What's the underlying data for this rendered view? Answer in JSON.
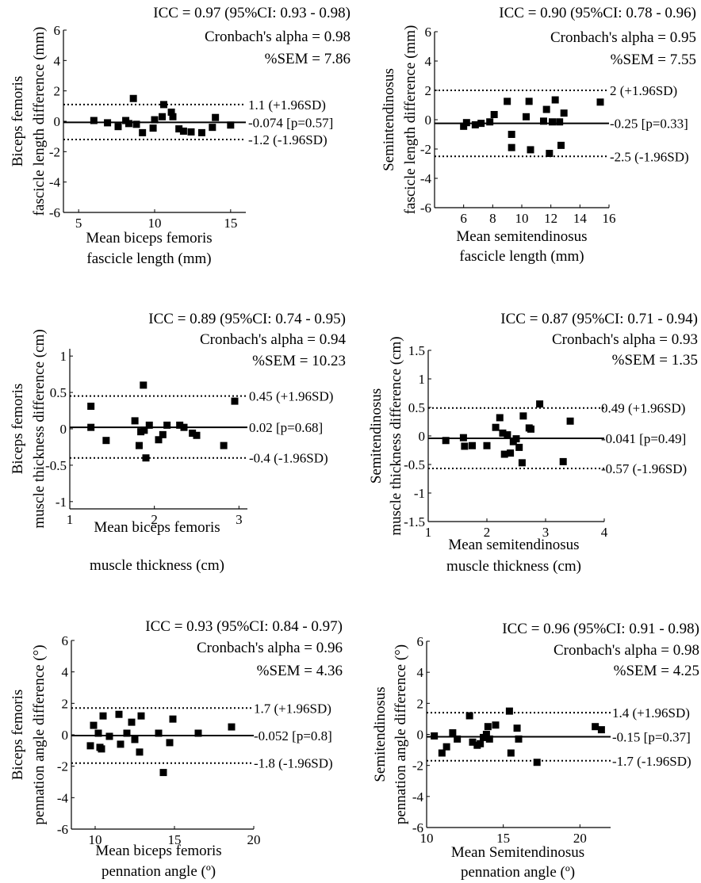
{
  "chart_data": [
    {
      "type": "scatter",
      "ylabel": [
        "Biceps femoris",
        "fascicle length difference (mm)"
      ],
      "xlabel": [
        "Mean biceps femoris",
        "fascicle length (mm)"
      ],
      "stats": [
        "ICC = 0.97 (95%CI: 0.93 - 0.98)",
        "Cronbach's alpha = 0.98",
        "%SEM = 7.86"
      ],
      "xlim": [
        4,
        16
      ],
      "ylim": [
        -6,
        6
      ],
      "xticks": [
        5,
        10,
        15
      ],
      "yticks": [
        -6,
        -4,
        -2,
        0,
        2,
        4,
        6
      ],
      "mean_line": -0.074,
      "upper_loa": 1.1,
      "lower_loa": -1.2,
      "mean_label": "-0.074 [p=0.57]",
      "upper_label": "1.1 (+1.96SD)",
      "lower_label": "-1.2 (-1.96SD)",
      "points": [
        [
          6.0,
          0.05
        ],
        [
          6.9,
          -0.1
        ],
        [
          7.6,
          -0.35
        ],
        [
          8.1,
          0.05
        ],
        [
          8.3,
          -0.15
        ],
        [
          8.6,
          1.5
        ],
        [
          8.8,
          -0.2
        ],
        [
          9.2,
          -0.75
        ],
        [
          9.9,
          -0.45
        ],
        [
          10.0,
          0.1
        ],
        [
          10.5,
          0.3
        ],
        [
          10.6,
          1.1
        ],
        [
          11.1,
          0.6
        ],
        [
          11.2,
          0.3
        ],
        [
          11.6,
          -0.5
        ],
        [
          11.9,
          -0.65
        ],
        [
          12.4,
          -0.7
        ],
        [
          13.1,
          -0.75
        ],
        [
          13.8,
          -0.4
        ],
        [
          14.0,
          0.25
        ],
        [
          15.0,
          -0.25
        ]
      ]
    },
    {
      "type": "scatter",
      "ylabel": [
        "Semintendinosus",
        "fascicle length difference (mm)"
      ],
      "xlabel": [
        "Mean semitendinosus",
        "fascicle length (mm)"
      ],
      "stats": [
        "ICC = 0.90 (95%CI: 0.78 - 0.96)",
        "Cronbach's alpha = 0.95",
        "%SEM = 7.55"
      ],
      "xlim": [
        4,
        16
      ],
      "ylim": [
        -6,
        6
      ],
      "xticks": [
        6,
        8,
        10,
        12,
        14,
        16
      ],
      "yticks": [
        -6,
        -4,
        -2,
        0,
        2,
        4,
        6
      ],
      "mean_line": -0.25,
      "upper_loa": 2,
      "lower_loa": -2.5,
      "mean_label": "-0.25 [p=0.33]",
      "upper_label": "2 (+1.96SD)",
      "lower_label": "-2.5 (-1.96SD)",
      "points": [
        [
          6.0,
          -0.45
        ],
        [
          6.2,
          -0.2
        ],
        [
          6.8,
          -0.35
        ],
        [
          7.2,
          -0.25
        ],
        [
          7.8,
          -0.15
        ],
        [
          8.1,
          0.35
        ],
        [
          9.0,
          1.25
        ],
        [
          9.3,
          -1.0
        ],
        [
          9.3,
          -1.9
        ],
        [
          10.3,
          0.2
        ],
        [
          10.5,
          1.25
        ],
        [
          10.6,
          -2.05
        ],
        [
          11.5,
          -0.1
        ],
        [
          11.7,
          0.7
        ],
        [
          11.9,
          -2.3
        ],
        [
          12.1,
          -0.15
        ],
        [
          12.3,
          1.35
        ],
        [
          12.6,
          -0.15
        ],
        [
          12.7,
          -1.75
        ],
        [
          12.9,
          0.45
        ],
        [
          15.4,
          1.2
        ]
      ]
    },
    {
      "type": "scatter",
      "ylabel": [
        "Biceps femoris",
        "muscle thickness difference (cm)"
      ],
      "xlabel": [
        "Mean biceps femoris",
        "muscle thickness (cm)"
      ],
      "stats": [
        "ICC = 0.89 (95%CI: 0.74 - 0.95)",
        "Cronbach's alpha = 0.94",
        "%SEM = 10.23"
      ],
      "xlim": [
        1,
        3.1
      ],
      "ylim": [
        -1.1,
        1.1
      ],
      "xticks": [
        1,
        2,
        3
      ],
      "yticks": [
        -1,
        -0.5,
        0,
        0.5,
        1
      ],
      "mean_line": 0.02,
      "upper_loa": 0.45,
      "lower_loa": -0.4,
      "mean_label": "0.02 [p=0.68]",
      "upper_label": "0.45 (+1.96SD)",
      "lower_label": "-0.4 (-1.96SD)",
      "points": [
        [
          1.25,
          0.31
        ],
        [
          1.25,
          0.02
        ],
        [
          1.43,
          -0.16
        ],
        [
          1.77,
          0.11
        ],
        [
          1.82,
          -0.23
        ],
        [
          1.84,
          -0.04
        ],
        [
          1.87,
          0.6
        ],
        [
          1.88,
          -0.02
        ],
        [
          1.9,
          -0.4
        ],
        [
          1.94,
          0.05
        ],
        [
          2.05,
          -0.15
        ],
        [
          2.1,
          -0.08
        ],
        [
          2.15,
          0.05
        ],
        [
          2.3,
          0.05
        ],
        [
          2.35,
          0.02
        ],
        [
          2.45,
          -0.06
        ],
        [
          2.5,
          -0.09
        ],
        [
          2.82,
          -0.23
        ],
        [
          2.95,
          0.38
        ]
      ]
    },
    {
      "type": "scatter",
      "ylabel": [
        "Semitendinosus",
        "muscle thickness difference (cm)"
      ],
      "xlabel": [
        "Mean semitendinosus",
        "muscle thickness (cm)"
      ],
      "stats": [
        "ICC = 0.87 (95%CI: 0.71 - 0.94)",
        "Cronbach's alpha = 0.93",
        "%SEM = 1.35"
      ],
      "xlim": [
        1,
        4
      ],
      "ylim": [
        -1.5,
        1.5
      ],
      "xticks": [
        1,
        2,
        3,
        4
      ],
      "yticks": [
        -1.5,
        -1,
        -0.5,
        0,
        0.5,
        1,
        1.5
      ],
      "mean_line": -0.041,
      "upper_loa": 0.49,
      "lower_loa": -0.57,
      "mean_label": "-0.041 [p=0.49]",
      "upper_label": "0.49 (+1.96SD)",
      "lower_label": "-0.57 (-1.96SD)",
      "points": [
        [
          1.3,
          -0.08
        ],
        [
          1.6,
          -0.03
        ],
        [
          1.62,
          -0.18
        ],
        [
          1.75,
          -0.17
        ],
        [
          2.0,
          -0.17
        ],
        [
          2.15,
          0.15
        ],
        [
          2.22,
          0.32
        ],
        [
          2.27,
          0.05
        ],
        [
          2.3,
          -0.32
        ],
        [
          2.35,
          0.02
        ],
        [
          2.4,
          -0.3
        ],
        [
          2.45,
          -0.1
        ],
        [
          2.5,
          -0.05
        ],
        [
          2.55,
          -0.2
        ],
        [
          2.6,
          -0.47
        ],
        [
          2.62,
          0.35
        ],
        [
          2.72,
          0.14
        ],
        [
          2.75,
          0.12
        ],
        [
          2.9,
          0.56
        ],
        [
          3.3,
          -0.45
        ],
        [
          3.42,
          0.26
        ]
      ]
    },
    {
      "type": "scatter",
      "ylabel": [
        "Biceps femoris",
        "pennation angle difference (°)"
      ],
      "xlabel": [
        "Mean biceps femoris",
        "pennation angle (º)"
      ],
      "stats": [
        "ICC = 0.93 (95%CI: 0.84 - 0.97)",
        "Cronbach's alpha = 0.96",
        "%SEM = 4.36"
      ],
      "xlim": [
        8.5,
        20
      ],
      "ylim": [
        -6,
        6
      ],
      "xticks": [
        10,
        15,
        20
      ],
      "yticks": [
        -6,
        -4,
        -2,
        0,
        2,
        4,
        6
      ],
      "mean_line": -0.052,
      "upper_loa": 1.7,
      "lower_loa": -1.8,
      "mean_label": "-0.052 [p=0.8]",
      "upper_label": "1.7 (+1.96SD)",
      "lower_label": "-1.8 (-1.96SD)",
      "points": [
        [
          9.7,
          -0.7
        ],
        [
          9.9,
          0.6
        ],
        [
          10.2,
          0.1
        ],
        [
          10.3,
          -0.8
        ],
        [
          10.4,
          -0.9
        ],
        [
          10.5,
          1.2
        ],
        [
          10.9,
          -0.1
        ],
        [
          11.5,
          1.3
        ],
        [
          11.6,
          -0.6
        ],
        [
          12.0,
          0.1
        ],
        [
          12.3,
          0.8
        ],
        [
          12.5,
          -0.3
        ],
        [
          12.8,
          -1.1
        ],
        [
          12.9,
          1.2
        ],
        [
          14.0,
          0.1
        ],
        [
          14.3,
          -2.4
        ],
        [
          14.7,
          -0.5
        ],
        [
          14.9,
          1.0
        ],
        [
          16.5,
          0.1
        ],
        [
          18.6,
          0.5
        ]
      ]
    },
    {
      "type": "scatter",
      "ylabel": [
        "Semitendinosus",
        "pennation angle difference (°)"
      ],
      "xlabel": [
        "Mean Semitendinosus",
        "pennation angle (º)"
      ],
      "stats": [
        "ICC = 0.96 (95%CI: 0.91 - 0.98)",
        "Cronbach's alpha = 0.98",
        "%SEM = 4.25"
      ],
      "xlim": [
        10,
        22
      ],
      "ylim": [
        -6,
        6
      ],
      "xticks": [
        10,
        15,
        20
      ],
      "yticks": [
        -6,
        -4,
        -2,
        0,
        2,
        4,
        6
      ],
      "mean_line": -0.15,
      "upper_loa": 1.4,
      "lower_loa": -1.7,
      "mean_label": "-0.15 [p=0.37]",
      "upper_label": "1.4 (+1.96SD)",
      "lower_label": "-1.7 (-1.96SD)",
      "points": [
        [
          10.5,
          -0.1
        ],
        [
          11.0,
          -1.2
        ],
        [
          11.3,
          -0.8
        ],
        [
          11.7,
          0.1
        ],
        [
          12.0,
          -0.3
        ],
        [
          12.8,
          1.2
        ],
        [
          13.0,
          -0.5
        ],
        [
          13.3,
          -0.7
        ],
        [
          13.5,
          -0.6
        ],
        [
          13.7,
          -0.2
        ],
        [
          13.9,
          0.0
        ],
        [
          14.0,
          0.5
        ],
        [
          14.5,
          0.6
        ],
        [
          14.1,
          -0.3
        ],
        [
          15.4,
          1.5
        ],
        [
          15.5,
          -1.2
        ],
        [
          15.9,
          0.4
        ],
        [
          16.0,
          -0.3
        ],
        [
          17.2,
          -1.8
        ],
        [
          21.0,
          0.5
        ],
        [
          21.4,
          0.3
        ]
      ]
    }
  ]
}
